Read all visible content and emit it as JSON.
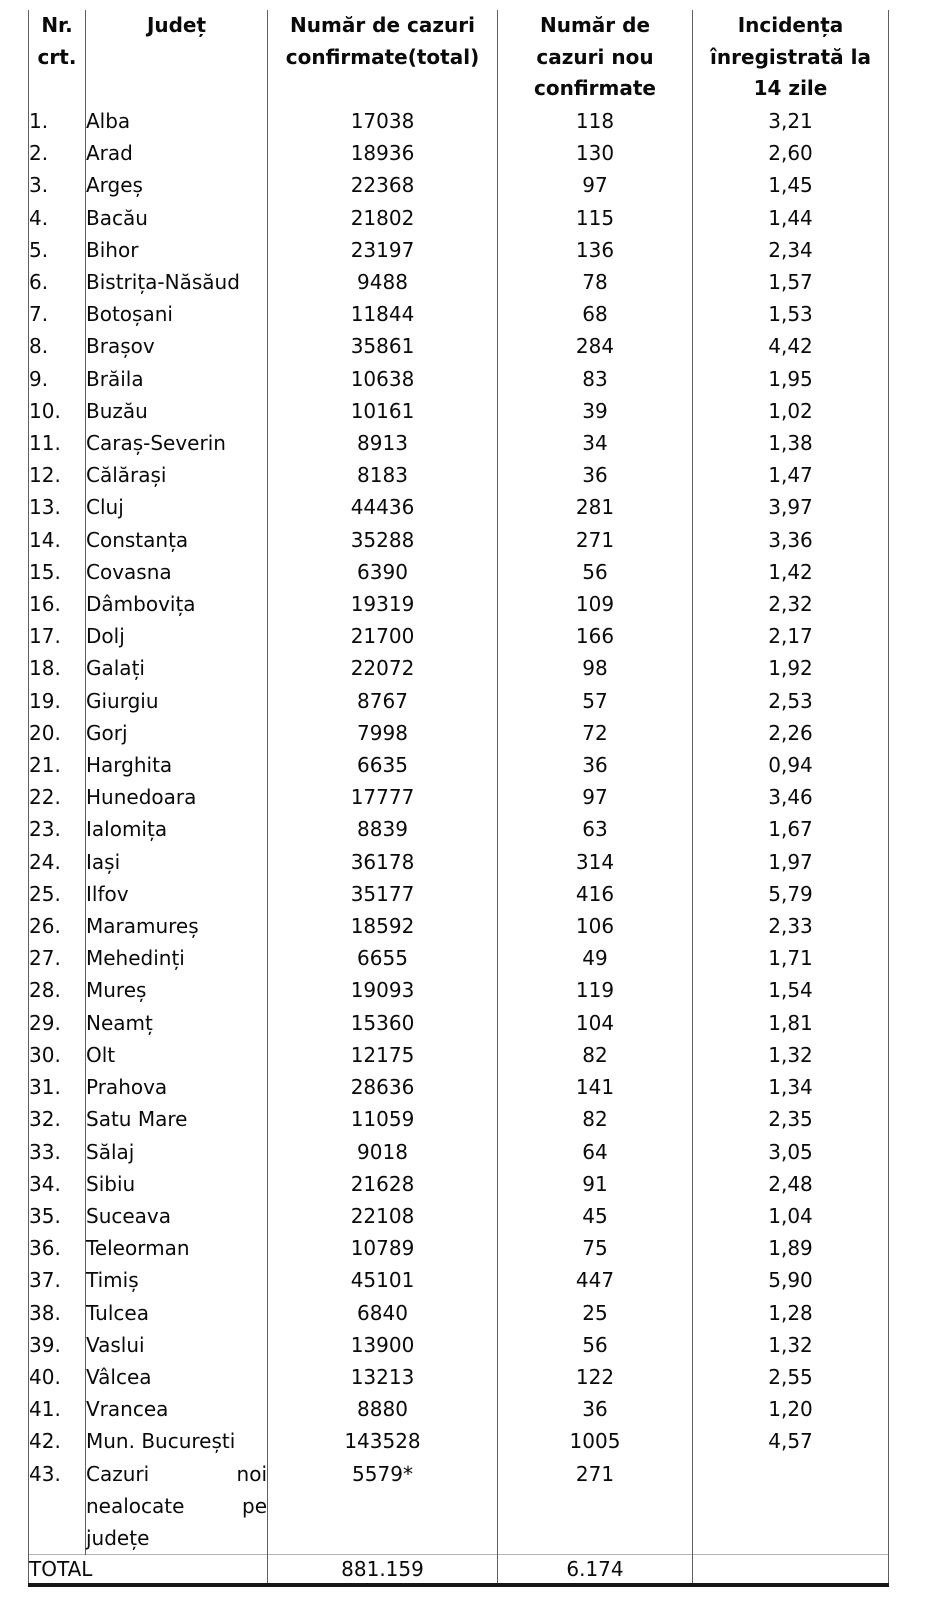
{
  "table": {
    "columns": [
      {
        "id": "nr_crt",
        "label_lines": [
          "Nr.",
          "crt."
        ]
      },
      {
        "id": "judet",
        "label_lines": [
          "Județ"
        ]
      },
      {
        "id": "total",
        "label_lines": [
          "Număr de cazuri",
          "confirmate(total)"
        ]
      },
      {
        "id": "noi",
        "label_lines": [
          "Număr de",
          "cazuri nou",
          "confirmate"
        ]
      },
      {
        "id": "incidenta",
        "label_lines": [
          "Incidența",
          "înregistrată la",
          "14 zile"
        ]
      }
    ],
    "rows": [
      {
        "nr": "1.",
        "judet": "Alba",
        "total": "17038",
        "noi": "118",
        "incidenta": "3,21"
      },
      {
        "nr": "2.",
        "judet": "Arad",
        "total": "18936",
        "noi": "130",
        "incidenta": "2,60"
      },
      {
        "nr": "3.",
        "judet": "Argeș",
        "total": "22368",
        "noi": "97",
        "incidenta": "1,45"
      },
      {
        "nr": "4.",
        "judet": "Bacău",
        "total": "21802",
        "noi": "115",
        "incidenta": "1,44"
      },
      {
        "nr": "5.",
        "judet": "Bihor",
        "total": "23197",
        "noi": "136",
        "incidenta": "2,34"
      },
      {
        "nr": "6.",
        "judet": "Bistrița-Năsăud",
        "total": "9488",
        "noi": "78",
        "incidenta": "1,57"
      },
      {
        "nr": "7.",
        "judet": "Botoșani",
        "total": "11844",
        "noi": "68",
        "incidenta": "1,53"
      },
      {
        "nr": "8.",
        "judet": "Brașov",
        "total": "35861",
        "noi": "284",
        "incidenta": "4,42"
      },
      {
        "nr": "9.",
        "judet": "Brăila",
        "total": "10638",
        "noi": "83",
        "incidenta": "1,95"
      },
      {
        "nr": "10.",
        "judet": "Buzău",
        "total": "10161",
        "noi": "39",
        "incidenta": "1,02"
      },
      {
        "nr": "11.",
        "judet": "Caraș-Severin",
        "total": "8913",
        "noi": "34",
        "incidenta": "1,38"
      },
      {
        "nr": "12.",
        "judet": "Călărași",
        "total": "8183",
        "noi": "36",
        "incidenta": "1,47"
      },
      {
        "nr": "13.",
        "judet": "Cluj",
        "total": "44436",
        "noi": "281",
        "incidenta": "3,97"
      },
      {
        "nr": "14.",
        "judet": "Constanța",
        "total": "35288",
        "noi": "271",
        "incidenta": "3,36"
      },
      {
        "nr": "15.",
        "judet": "Covasna",
        "total": "6390",
        "noi": "56",
        "incidenta": "1,42"
      },
      {
        "nr": "16.",
        "judet": "Dâmbovița",
        "total": "19319",
        "noi": "109",
        "incidenta": "2,32"
      },
      {
        "nr": "17.",
        "judet": "Dolj",
        "total": "21700",
        "noi": "166",
        "incidenta": "2,17"
      },
      {
        "nr": "18.",
        "judet": "Galați",
        "total": "22072",
        "noi": "98",
        "incidenta": "1,92"
      },
      {
        "nr": "19.",
        "judet": "Giurgiu",
        "total": "8767",
        "noi": "57",
        "incidenta": "2,53"
      },
      {
        "nr": "20.",
        "judet": "Gorj",
        "total": "7998",
        "noi": "72",
        "incidenta": "2,26"
      },
      {
        "nr": "21.",
        "judet": "Harghita",
        "total": "6635",
        "noi": "36",
        "incidenta": "0,94"
      },
      {
        "nr": "22.",
        "judet": "Hunedoara",
        "total": "17777",
        "noi": "97",
        "incidenta": "3,46"
      },
      {
        "nr": "23.",
        "judet": "Ialomița",
        "total": "8839",
        "noi": "63",
        "incidenta": "1,67"
      },
      {
        "nr": "24.",
        "judet": "Iași",
        "total": "36178",
        "noi": "314",
        "incidenta": "1,97"
      },
      {
        "nr": "25.",
        "judet": "Ilfov",
        "total": "35177",
        "noi": "416",
        "incidenta": "5,79"
      },
      {
        "nr": "26.",
        "judet": "Maramureș",
        "total": "18592",
        "noi": "106",
        "incidenta": "2,33"
      },
      {
        "nr": "27.",
        "judet": "Mehedinți",
        "total": "6655",
        "noi": "49",
        "incidenta": "1,71"
      },
      {
        "nr": "28.",
        "judet": "Mureș",
        "total": "19093",
        "noi": "119",
        "incidenta": "1,54"
      },
      {
        "nr": "29.",
        "judet": "Neamț",
        "total": "15360",
        "noi": "104",
        "incidenta": "1,81"
      },
      {
        "nr": "30.",
        "judet": "Olt",
        "total": "12175",
        "noi": "82",
        "incidenta": "1,32"
      },
      {
        "nr": "31.",
        "judet": "Prahova",
        "total": "28636",
        "noi": "141",
        "incidenta": "1,34"
      },
      {
        "nr": "32.",
        "judet": "Satu Mare",
        "total": "11059",
        "noi": "82",
        "incidenta": "2,35"
      },
      {
        "nr": "33.",
        "judet": "Sălaj",
        "total": "9018",
        "noi": "64",
        "incidenta": "3,05"
      },
      {
        "nr": "34.",
        "judet": "Sibiu",
        "total": "21628",
        "noi": "91",
        "incidenta": "2,48"
      },
      {
        "nr": "35.",
        "judet": "Suceava",
        "total": "22108",
        "noi": "45",
        "incidenta": "1,04"
      },
      {
        "nr": "36.",
        "judet": "Teleorman",
        "total": "10789",
        "noi": "75",
        "incidenta": "1,89"
      },
      {
        "nr": "37.",
        "judet": "Timiș",
        "total": "45101",
        "noi": "447",
        "incidenta": "5,90"
      },
      {
        "nr": "38.",
        "judet": "Tulcea",
        "total": "6840",
        "noi": "25",
        "incidenta": "1,28"
      },
      {
        "nr": "39.",
        "judet": "Vaslui",
        "total": "13900",
        "noi": "56",
        "incidenta": "1,32"
      },
      {
        "nr": "40.",
        "judet": "Vâlcea",
        "total": "13213",
        "noi": "122",
        "incidenta": "2,55"
      },
      {
        "nr": "41.",
        "judet": "Vrancea",
        "total": "8880",
        "noi": "36",
        "incidenta": "1,20"
      },
      {
        "nr": "42.",
        "judet": "Mun. București",
        "total": "143528",
        "noi": "1005",
        "incidenta": "4,57"
      },
      {
        "nr": "43.",
        "judet_lines": [
          "Cazuri noi",
          "nealocate pe",
          "județe"
        ],
        "total": "5579*",
        "noi": "271",
        "incidenta": ""
      }
    ],
    "total_row": {
      "label": "TOTAL",
      "total": "881.159",
      "noi": "6.174",
      "incidenta": ""
    }
  }
}
